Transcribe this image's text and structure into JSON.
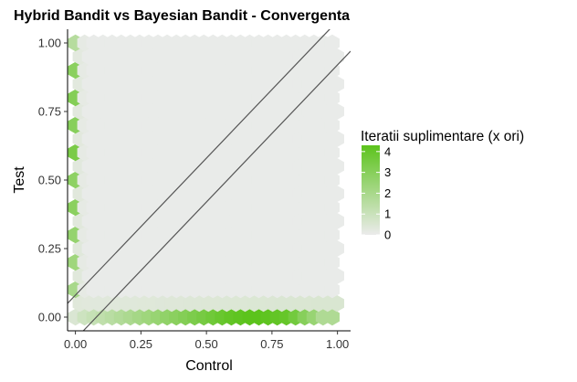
{
  "chart_data": {
    "type": "heatmap",
    "subtype": "hexbin",
    "title": "Hybrid Bandit vs Bayesian Bandit - Convergenta",
    "xlabel": "Control",
    "ylabel": "Test",
    "xlim": [
      -0.03,
      1.05
    ],
    "ylim": [
      -0.05,
      1.05
    ],
    "x_ticks": [
      "0.00",
      "0.25",
      "0.50",
      "0.75",
      "1.00"
    ],
    "y_ticks": [
      "0.00",
      "0.25",
      "0.50",
      "0.75",
      "1.00"
    ],
    "hex_grid": {
      "x_step": 0.035,
      "y_step": 0.05,
      "x_min": 0.0,
      "x_max": 1.0,
      "y_min": 0.0,
      "y_max": 0.98
    },
    "fill_scale": {
      "title": "Iteratii suplimentare (x ori)",
      "min": 0,
      "max": 4.3,
      "low_color": "#ebebeb",
      "high_color": "#5cc31c",
      "ticks": [
        "0",
        "1",
        "2",
        "3",
        "4"
      ]
    },
    "left_column_values": [
      1.6,
      2.6,
      2.9,
      2.5,
      3.1,
      3.3,
      3.0,
      2.7,
      3.4,
      3.1,
      2.8,
      3.0,
      2.9,
      2.7,
      2.6,
      2.5,
      2.3,
      2.2,
      2.0,
      1.9,
      1.7
    ],
    "bottom_row_values": [
      0.5,
      0.9,
      1.1,
      1.3,
      1.5,
      1.7,
      1.9,
      2.1,
      2.3,
      2.5,
      2.7,
      2.9,
      3.1,
      3.3,
      3.5,
      3.7,
      3.9,
      4.1,
      4.2,
      4.3,
      4.3,
      4.2,
      4.1,
      4.0,
      3.6,
      3.0,
      2.5,
      1.8
    ],
    "reference_lines": [
      {
        "slope": 1,
        "intercept": 0.08
      },
      {
        "slope": 1,
        "intercept": -0.08
      }
    ],
    "legend_position": "right",
    "background": "none"
  }
}
